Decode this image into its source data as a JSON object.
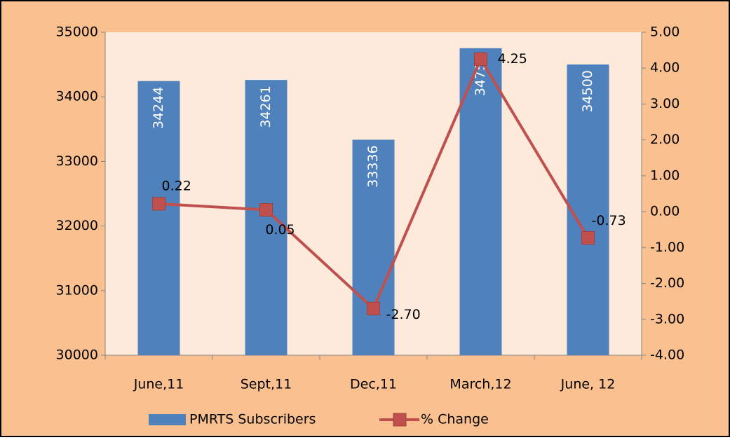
{
  "chart_data": {
    "type": "bar_line",
    "categories": [
      "June,11",
      "Sept,11",
      "Dec,11",
      "March,12",
      "June, 12"
    ],
    "series": [
      {
        "name": "PMRTS Subscribers",
        "color": "#4f81bd",
        "type": "bar",
        "values": [
          34244,
          34261,
          33336,
          34753,
          34500
        ]
      },
      {
        "name": "% Change",
        "color": "#c0504d",
        "type": "line",
        "axis": "y2",
        "values": [
          0.22,
          0.05,
          -2.7,
          4.25,
          -0.73
        ],
        "value_labels": [
          "0.22",
          "0.05",
          "-2.70",
          "4.25",
          "-0.73"
        ]
      }
    ],
    "ylim": [
      30000,
      35000
    ],
    "yticks": [
      30000,
      31000,
      32000,
      33000,
      34000,
      35000
    ],
    "y2lim": [
      -4,
      5
    ],
    "y2ticks": [
      {
        "value": -4,
        "label": "-4.00"
      },
      {
        "value": -3,
        "label": "-3.00"
      },
      {
        "value": -2,
        "label": "-2.00"
      },
      {
        "value": -1,
        "label": "-1.00"
      },
      {
        "value": 0,
        "label": "0.00"
      },
      {
        "value": 1,
        "label": "1.00"
      },
      {
        "value": 2,
        "label": "2.00"
      },
      {
        "value": 3,
        "label": "3.00"
      },
      {
        "value": 4,
        "label": "4.00"
      },
      {
        "value": 5,
        "label": "5.00"
      }
    ],
    "legend": "bottom",
    "grid": false
  }
}
